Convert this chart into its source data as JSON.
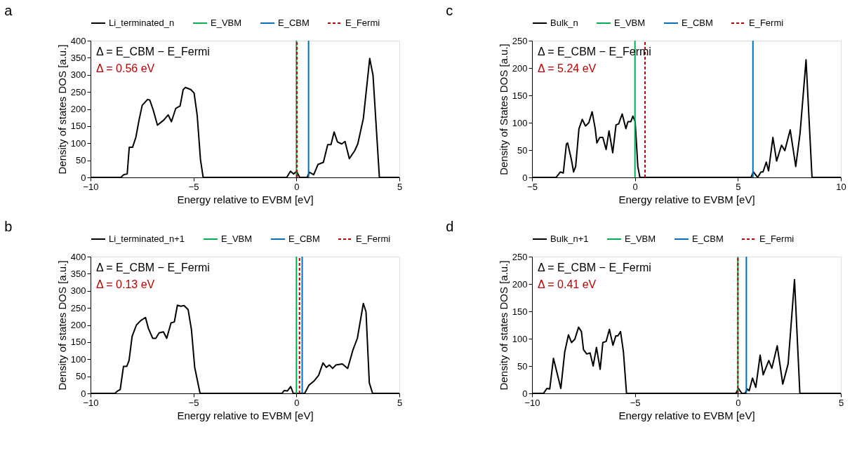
{
  "chart_data": [
    {
      "type": "line",
      "title": "a",
      "xlabel": "Energy relative to EVBM [eV]",
      "ylabel": "Density of states DOS [a.u.]",
      "annotations": [
        "Δ = E_CBM − E_Fermi",
        "Δ = 0.56 eV"
      ],
      "series": [
        {
          "name": "Li_terminated_n",
          "color": "#000000",
          "x": [
            -10,
            -8.53,
            -8.38,
            -8.22,
            -8.12,
            -7.96,
            -7.8,
            -7.64,
            -7.49,
            -7.23,
            -7.12,
            -6.96,
            -6.75,
            -6.44,
            -6.23,
            -6.07,
            -5.86,
            -5.65,
            -5.5,
            -5.39,
            -5.13,
            -4.97,
            -4.82,
            -4.66,
            -4.53,
            -0.47,
            -0.29,
            -0.13,
            0,
            0.16,
            0.52,
            0.63,
            0.84,
            1.05,
            1.31,
            1.52,
            1.68,
            1.83,
            1.99,
            2.2,
            2.36,
            2.57,
            2.83,
            2.98,
            3.25,
            3.56,
            3.72,
            4.03,
            5
          ],
          "values": [
            0,
            0,
            8,
            10,
            88,
            88,
            117,
            169,
            211,
            228,
            226,
            198,
            153,
            168,
            183,
            163,
            202,
            209,
            257,
            263,
            257,
            247,
            182,
            52,
            0,
            0,
            18,
            10,
            18,
            0,
            0,
            15,
            8,
            38,
            44,
            96,
            96,
            133,
            104,
            98,
            105,
            55,
            78,
            98,
            172,
            348,
            299,
            0,
            0
          ]
        }
      ],
      "ref_lines": [
        {
          "axis": "x",
          "value": 0,
          "label": "E_VBM",
          "color": "#00b050",
          "line_style": "solid"
        },
        {
          "axis": "x",
          "value": 0.59,
          "label": "E_CBM",
          "color": "#0070c0",
          "line_style": "solid"
        },
        {
          "axis": "x",
          "value": 0.03,
          "label": "E_Fermi",
          "color": "#c00000",
          "line_style": "dashed"
        }
      ],
      "xlim": [
        -10,
        5
      ],
      "xticks": [
        -10,
        -5,
        0,
        5
      ],
      "ylim": [
        0,
        400
      ],
      "yticks": [
        0,
        50,
        100,
        150,
        200,
        250,
        300,
        350,
        400
      ],
      "legend": "top",
      "grid": false
    },
    {
      "type": "line",
      "title": "c",
      "xlabel": "Energy relative to EVBM [eV]",
      "ylabel": "Density of States DOS [a.u.]",
      "annotations": [
        "Δ = E_CBM − E_Fermi",
        "Δ = 5.24 eV"
      ],
      "series": [
        {
          "name": "Bulk_n",
          "color": "#000000",
          "x": [
            -5,
            -3.83,
            -3.62,
            -3.48,
            -3.33,
            -3.27,
            -3.09,
            -2.98,
            -2.88,
            -2.72,
            -2.56,
            -2.4,
            -2.24,
            -2.08,
            -1.93,
            -1.85,
            -1.71,
            -1.56,
            -1.4,
            -1.26,
            -1.08,
            -0.92,
            -0.79,
            -0.62,
            -0.44,
            -0.34,
            -0.2,
            -0.1,
            0.01,
            0.14,
            0.24,
            5.64,
            5.75,
            5.96,
            6.12,
            6.22,
            6.38,
            6.49,
            6.7,
            6.88,
            7.12,
            7.28,
            7.54,
            7.81,
            8.02,
            8.31,
            8.6,
            10
          ],
          "values": [
            0,
            0,
            10,
            8,
            61,
            63,
            33,
            10,
            20,
            89,
            106,
            94,
            100,
            120,
            89,
            63,
            73,
            73,
            51,
            85,
            45,
            96,
            98,
            116,
            89,
            102,
            102,
            112,
            102,
            20,
            0,
            0,
            10,
            0,
            10,
            10,
            28,
            12,
            73,
            30,
            59,
            49,
            87,
            20,
            81,
            215,
            0,
            0
          ]
        }
      ],
      "ref_lines": [
        {
          "axis": "x",
          "value": 0,
          "label": "E_VBM",
          "color": "#00b050",
          "line_style": "solid"
        },
        {
          "axis": "x",
          "value": 5.73,
          "label": "E_CBM",
          "color": "#0070c0",
          "line_style": "solid"
        },
        {
          "axis": "x",
          "value": 0.49,
          "label": "E_Fermi",
          "color": "#c00000",
          "line_style": "dashed"
        }
      ],
      "xlim": [
        -5,
        10
      ],
      "xticks": [
        -5,
        0,
        5,
        10
      ],
      "ylim": [
        0,
        250
      ],
      "yticks": [
        0,
        50,
        100,
        150,
        200,
        250
      ],
      "legend": "top",
      "grid": false
    },
    {
      "type": "line",
      "title": "b",
      "xlabel": "Energy relative to EVBM [eV]",
      "ylabel": "Density of states DOS [a.u.]",
      "annotations": [
        "Δ = E_CBM − E_Fermi",
        "Δ = 0.13 eV"
      ],
      "series": [
        {
          "name": "Li_terminated_n+1",
          "color": "#000000",
          "x": [
            -10,
            -8.82,
            -8.66,
            -8.56,
            -8.4,
            -8.24,
            -8.13,
            -7.98,
            -7.77,
            -7.56,
            -7.33,
            -7.19,
            -6.98,
            -6.83,
            -6.67,
            -6.46,
            -6.3,
            -6.09,
            -5.93,
            -5.78,
            -5.62,
            -5.46,
            -5.26,
            -5.1,
            -4.94,
            -4.68,
            -0.7,
            -0.6,
            -0.44,
            -0.28,
            -0.15,
            0.4,
            0.61,
            0.87,
            1.08,
            1.29,
            1.45,
            1.6,
            1.76,
            1.92,
            2.23,
            2.49,
            2.75,
            2.96,
            3.25,
            3.38,
            3.54,
            3.7,
            5
          ],
          "values": [
            0,
            0,
            8,
            11,
            79,
            79,
            96,
            167,
            200,
            213,
            222,
            190,
            161,
            161,
            177,
            180,
            161,
            206,
            209,
            258,
            255,
            257,
            245,
            187,
            76,
            0,
            0,
            8,
            7,
            20,
            0,
            0,
            24,
            37,
            53,
            89,
            76,
            83,
            73,
            83,
            86,
            73,
            128,
            161,
            263,
            239,
            31,
            0,
            0
          ]
        }
      ],
      "ref_lines": [
        {
          "axis": "x",
          "value": 0,
          "label": "E_VBM",
          "color": "#00b050",
          "line_style": "solid"
        },
        {
          "axis": "x",
          "value": 0.28,
          "label": "E_CBM",
          "color": "#0070c0",
          "line_style": "solid"
        },
        {
          "axis": "x",
          "value": 0.15,
          "label": "E_Fermi",
          "color": "#c00000",
          "line_style": "dashed"
        }
      ],
      "xlim": [
        -10,
        5
      ],
      "xticks": [
        -10,
        -5,
        0,
        5
      ],
      "ylim": [
        0,
        400
      ],
      "yticks": [
        0,
        50,
        100,
        150,
        200,
        250,
        300,
        350,
        400
      ],
      "legend": "top",
      "grid": false
    },
    {
      "type": "line",
      "title": "d",
      "xlabel": "Energy relative to EVBM [eV]",
      "ylabel": "Density of states DOS [a.u.]",
      "annotations": [
        "Δ = E_CBM − E_Fermi",
        "Δ = 0.41 eV"
      ],
      "series": [
        {
          "name": "Bulk_n+1",
          "color": "#000000",
          "x": [
            -10,
            -9.44,
            -9.28,
            -9.14,
            -8.96,
            -8.79,
            -8.6,
            -8.41,
            -8.23,
            -8.08,
            -7.92,
            -7.74,
            -7.6,
            -7.5,
            -7.34,
            -7.18,
            -7.03,
            -6.87,
            -6.69,
            -6.56,
            -6.4,
            -6.24,
            -6.07,
            -5.93,
            -5.83,
            -5.7,
            -5.56,
            -5.41,
            -0.1,
            0.03,
            0.19,
            0.35,
            0.45,
            0.55,
            0.71,
            0.87,
            1.08,
            1.23,
            1.5,
            1.65,
            1.91,
            2.18,
            2.44,
            2.75,
            3.01,
            5
          ],
          "values": [
            0,
            0,
            9,
            8,
            64,
            38,
            9,
            76,
            107,
            93,
            99,
            121,
            113,
            80,
            72,
            74,
            50,
            84,
            44,
            93,
            95,
            117,
            88,
            105,
            105,
            113,
            76,
            0,
            0,
            9,
            0,
            0,
            8,
            5,
            28,
            11,
            70,
            34,
            60,
            46,
            87,
            17,
            54,
            208,
            0,
            0
          ]
        }
      ],
      "ref_lines": [
        {
          "axis": "x",
          "value": 0,
          "label": "E_VBM",
          "color": "#00b050",
          "line_style": "solid"
        },
        {
          "axis": "x",
          "value": 0.41,
          "label": "E_CBM",
          "color": "#0070c0",
          "line_style": "solid"
        },
        {
          "axis": "x",
          "value": 0,
          "label": "E_Fermi",
          "color": "#c00000",
          "line_style": "dashed"
        }
      ],
      "xlim": [
        -10,
        5
      ],
      "xticks": [
        -10,
        -5,
        0,
        5
      ],
      "ylim": [
        0,
        250
      ],
      "yticks": [
        0,
        50,
        100,
        150,
        200,
        250
      ],
      "legend": "top",
      "grid": false
    }
  ]
}
